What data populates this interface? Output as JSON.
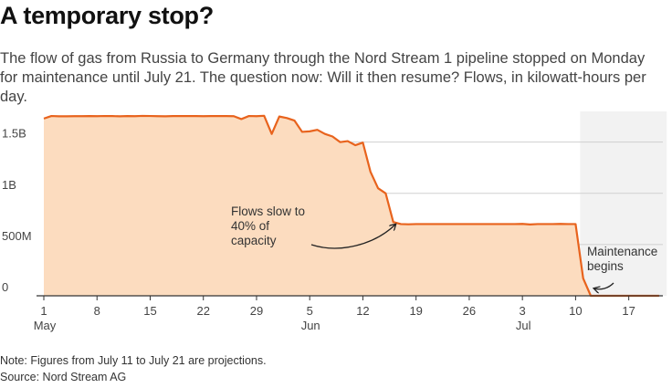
{
  "header": {
    "title": "A temporary stop?",
    "subtitle": "The flow of gas from Russia to Germany through the Nord Stream 1 pipeline stopped on Monday for maintenance until July 21. The question now: Will it then resume? Flows, in kilowatt-hours per day."
  },
  "footer": {
    "note": "Note: Figures from July 11 to July 21 are projections.",
    "source": "Source: Nord Stream AG"
  },
  "chart_data": {
    "type": "area",
    "title": "A temporary stop?",
    "xlabel": "",
    "ylabel": "",
    "x_start": "2022-05-01",
    "ylim": [
      0,
      1800000000
    ],
    "grid": true,
    "colors": {
      "area": "#fcdcbf",
      "line": "#e8631d",
      "shade": "#f2f2f2",
      "grid": "#d0d0d0",
      "axis": "#333333"
    },
    "y_ticks": [
      {
        "value": 0,
        "label": "0"
      },
      {
        "value": 500000000,
        "label": "500M"
      },
      {
        "value": 1000000000,
        "label": "1B"
      },
      {
        "value": 1500000000,
        "label": "1.5B"
      }
    ],
    "x_ticks": [
      {
        "date": "2022-05-01",
        "label": "1",
        "month": "May"
      },
      {
        "date": "2022-05-08",
        "label": "8"
      },
      {
        "date": "2022-05-15",
        "label": "15"
      },
      {
        "date": "2022-05-22",
        "label": "22"
      },
      {
        "date": "2022-05-29",
        "label": "29"
      },
      {
        "date": "2022-06-05",
        "label": "5",
        "month": "Jun"
      },
      {
        "date": "2022-06-12",
        "label": "12"
      },
      {
        "date": "2022-06-19",
        "label": "19"
      },
      {
        "date": "2022-06-26",
        "label": "26"
      },
      {
        "date": "2022-07-03",
        "label": "3",
        "month": "Jul"
      },
      {
        "date": "2022-07-10",
        "label": "10"
      },
      {
        "date": "2022-07-17",
        "label": "17"
      }
    ],
    "shaded_range": {
      "from": "2022-07-11",
      "to": "2022-07-21"
    },
    "series": [
      {
        "x": [
          "2022-05-01",
          "2022-05-02",
          "2022-05-03",
          "2022-05-04",
          "2022-05-05",
          "2022-05-06",
          "2022-05-07",
          "2022-05-08",
          "2022-05-09",
          "2022-05-10",
          "2022-05-11",
          "2022-05-12",
          "2022-05-13",
          "2022-05-14",
          "2022-05-15",
          "2022-05-16",
          "2022-05-17",
          "2022-05-18",
          "2022-05-19",
          "2022-05-20",
          "2022-05-21",
          "2022-05-22",
          "2022-05-23",
          "2022-05-24",
          "2022-05-25",
          "2022-05-26",
          "2022-05-27",
          "2022-05-28",
          "2022-05-29",
          "2022-05-30",
          "2022-05-31",
          "2022-06-01",
          "2022-06-02",
          "2022-06-03",
          "2022-06-04",
          "2022-06-05",
          "2022-06-06",
          "2022-06-07",
          "2022-06-08",
          "2022-06-09",
          "2022-06-10",
          "2022-06-11",
          "2022-06-12",
          "2022-06-13",
          "2022-06-14",
          "2022-06-15",
          "2022-06-16",
          "2022-06-17",
          "2022-06-18",
          "2022-06-19",
          "2022-06-20",
          "2022-06-21",
          "2022-06-22",
          "2022-06-23",
          "2022-06-24",
          "2022-06-25",
          "2022-06-26",
          "2022-06-27",
          "2022-06-28",
          "2022-06-29",
          "2022-06-30",
          "2022-07-01",
          "2022-07-02",
          "2022-07-03",
          "2022-07-04",
          "2022-07-05",
          "2022-07-06",
          "2022-07-07",
          "2022-07-08",
          "2022-07-09",
          "2022-07-10",
          "2022-07-11",
          "2022-07-12",
          "2022-07-13",
          "2022-07-14",
          "2022-07-15",
          "2022-07-16",
          "2022-07-17",
          "2022-07-18",
          "2022-07-19",
          "2022-07-20",
          "2022-07-21"
        ],
        "y": [
          1730000000,
          1755000000,
          1752000000,
          1752000000,
          1753000000,
          1753000000,
          1754000000,
          1753000000,
          1755000000,
          1754000000,
          1752000000,
          1754000000,
          1753000000,
          1756000000,
          1755000000,
          1753000000,
          1752000000,
          1754000000,
          1754000000,
          1754000000,
          1754000000,
          1753000000,
          1754000000,
          1754000000,
          1754000000,
          1753000000,
          1725000000,
          1755000000,
          1753000000,
          1757000000,
          1580000000,
          1750000000,
          1735000000,
          1710000000,
          1600000000,
          1605000000,
          1620000000,
          1580000000,
          1555000000,
          1500000000,
          1510000000,
          1470000000,
          1495000000,
          1210000000,
          1050000000,
          1000000000,
          720000000,
          700000000,
          698000000,
          700000000,
          700000000,
          700000000,
          700000000,
          700000000,
          700000000,
          700000000,
          700000000,
          700000000,
          700000000,
          700000000,
          700000000,
          700000000,
          700000000,
          702000000,
          696000000,
          700000000,
          700000000,
          700000000,
          702000000,
          700000000,
          700000000,
          170000000,
          0,
          0,
          0,
          0,
          0,
          0,
          0,
          0,
          0,
          0
        ]
      }
    ],
    "annotations": [
      {
        "lines": [
          "Flows slow to",
          "40% of",
          "capacity"
        ]
      },
      {
        "lines": [
          "Maintenance",
          "begins"
        ]
      }
    ]
  }
}
